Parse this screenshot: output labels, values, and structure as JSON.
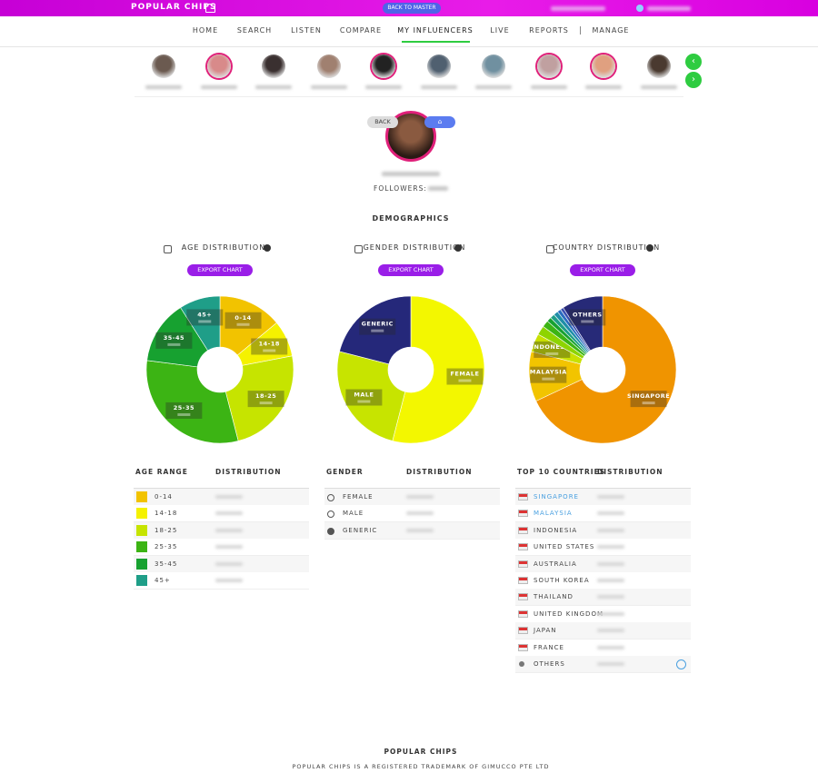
{
  "header": {
    "logo": "POPULAR CHIPS",
    "back_to_master": "BACK TO MASTER"
  },
  "nav": [
    "HOME",
    "SEARCH",
    "LISTEN",
    "COMPARE",
    "MY INFLUENCERS",
    "LIVE",
    "REPORTS",
    "MANAGE"
  ],
  "profile": {
    "back": "BACK",
    "followers_label": "FOLLOWERS:"
  },
  "section_title": "DEMOGRAPHICS",
  "export_buttons": [
    "EXPORT CHART",
    "EXPORT CHART",
    "EXPORT CHART"
  ],
  "tables": [
    {
      "headers": [
        "AGE RANGE",
        "DISTRIBUTION"
      ]
    },
    {
      "headers": [
        "GENDER",
        "DISTRIBUTION"
      ]
    },
    {
      "headers": [
        "TOP 10 COUNTRIES",
        "DISTRIBUTION"
      ]
    }
  ],
  "footer": {
    "brand": "POPULAR CHIPS",
    "notice": "POPULAR CHIPS IS A REGISTERED TRADEMARK OF GIMUCCO PTE LTD"
  },
  "chart_data": [
    {
      "type": "pie",
      "title": "AGE DISTRIBUTION",
      "categories": [
        "0-14",
        "14-18",
        "18-25",
        "25-35",
        "35-45",
        "45+"
      ],
      "values": [
        14,
        8,
        24,
        31,
        14,
        9
      ],
      "colors": [
        "#f2c300",
        "#f5f200",
        "#c6e400",
        "#3cb414",
        "#17a130",
        "#1f9e88"
      ]
    },
    {
      "type": "pie",
      "title": "GENDER DISTRIBUTION",
      "categories": [
        "FEMALE",
        "MALE",
        "GENERIC"
      ],
      "values": [
        54,
        25,
        21
      ],
      "colors": [
        "#f3f700",
        "#c7e400",
        "#25287a"
      ]
    },
    {
      "type": "pie",
      "title": "COUNTRY DISTRIBUTION",
      "categories": [
        "SINGAPORE",
        "MALAYSIA",
        "INDONESIA",
        "UNITED STATES",
        "AUSTRALIA",
        "SOUTH KOREA",
        "THAILAND",
        "UNITED KINGDOM",
        "JAPAN",
        "FRANCE",
        "OTHERS"
      ],
      "values": [
        68,
        11,
        4,
        2,
        1.5,
        1,
        1,
        1,
        0.8,
        0.7,
        9
      ],
      "colors": [
        "#f09400",
        "#f2c400",
        "#c9e000",
        "#8ed400",
        "#3cb414",
        "#17a130",
        "#1f9e88",
        "#1f8ea8",
        "#2a6cc0",
        "#3a4fb0",
        "#272a78"
      ]
    }
  ]
}
